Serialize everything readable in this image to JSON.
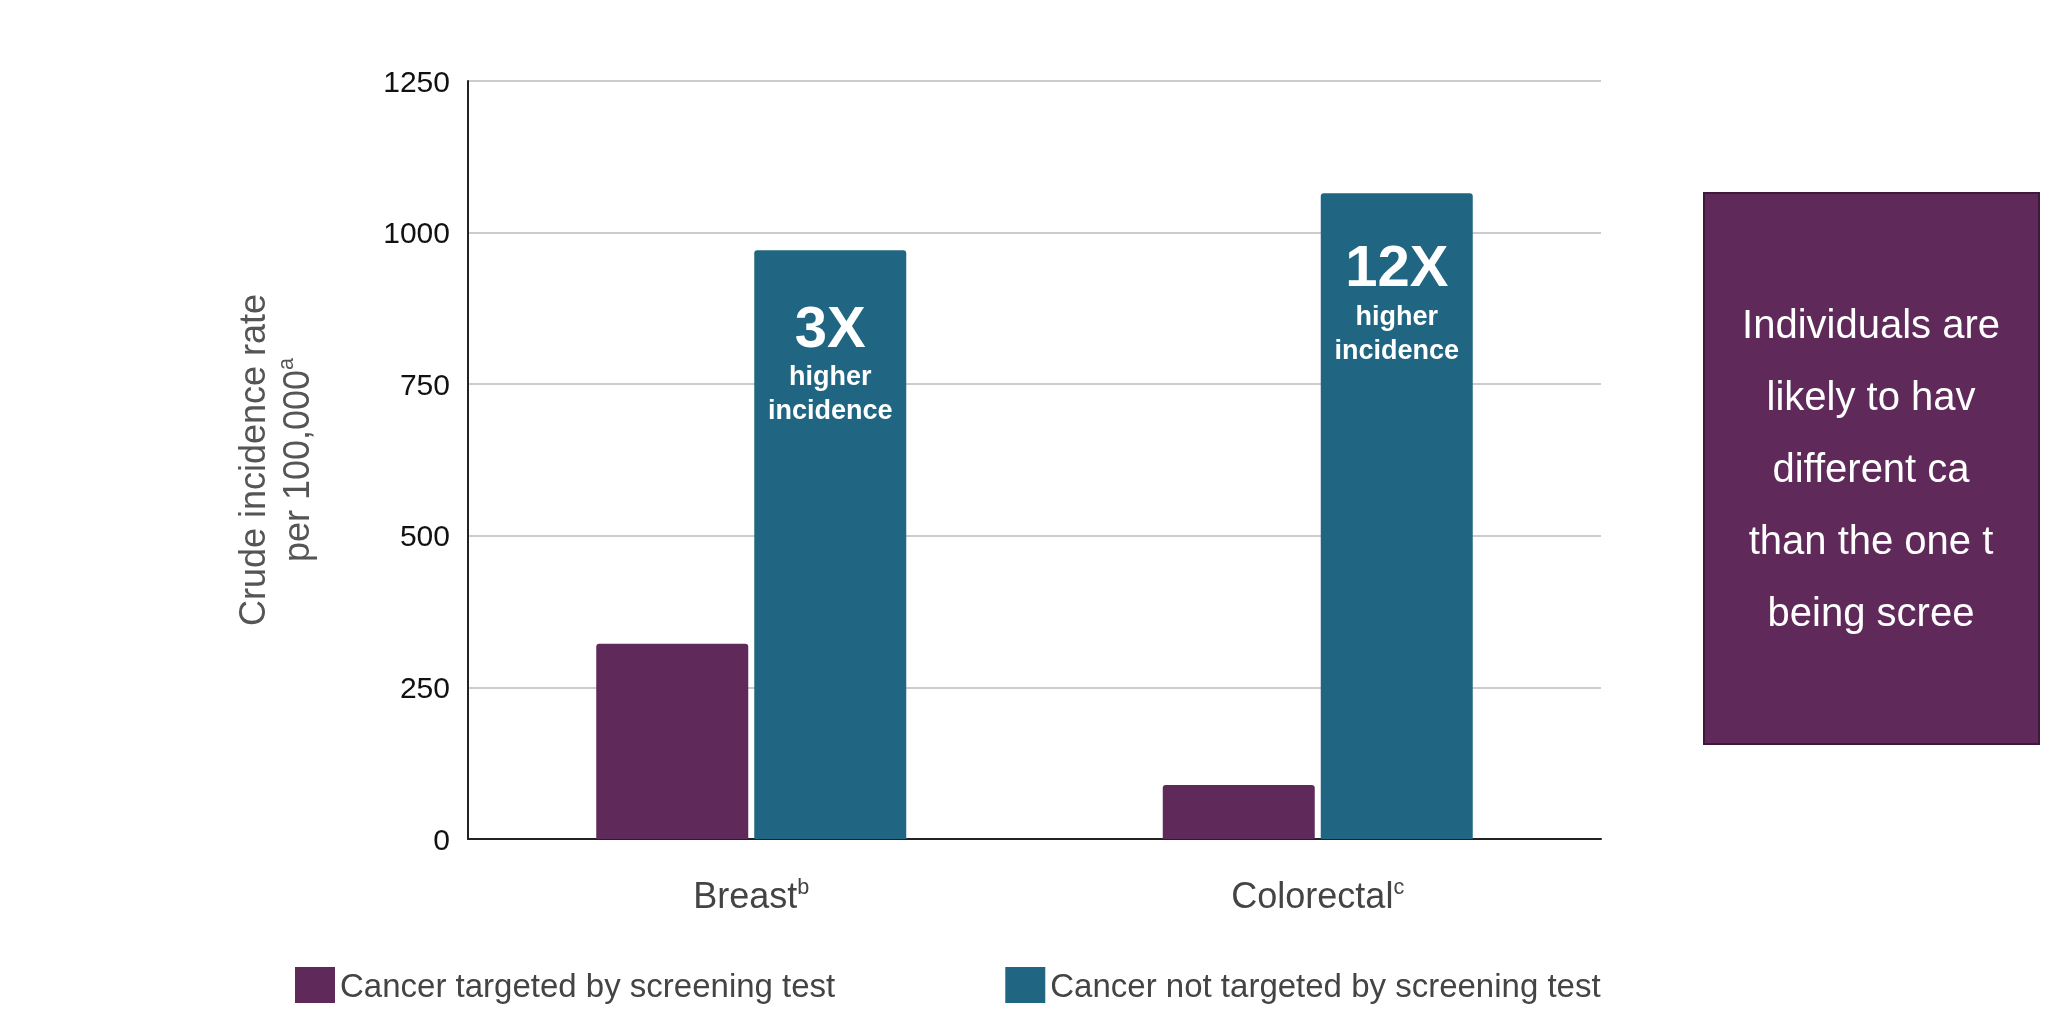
{
  "chart_data": {
    "type": "bar",
    "categories": [
      "Breast$^{b}$",
      "Colorectal$^{c}$"
    ],
    "series": [
      {
        "name": "Cancer targeted by screening test",
        "color": "#5f2a5a",
        "values": [
          322,
          89
        ]
      },
      {
        "name": "Cancer not targeted by screening test",
        "color": "#206682",
        "values": [
          971,
          1065
        ]
      }
    ],
    "ylabel": "Crude incidence rate\nper 100,000$^{a}$",
    "ylim": [
      0,
      1250
    ],
    "yticks": [
      0,
      250,
      500,
      750,
      1000,
      1250
    ],
    "grid": "y",
    "legend": "bottom",
    "annotations": [
      {
        "text": "3X\nhigher\nincidence",
        "x": "Breast$^{b}$",
        "y": 900
      },
      {
        "text": "12X\nhigher\nincidence",
        "x": "Colorectal$^{c}$",
        "y": 1000
      },
      "Individuals are\nlikely to hav\ndifferent ca\nthan the one t\nbeing scree"
    ]
  }
}
